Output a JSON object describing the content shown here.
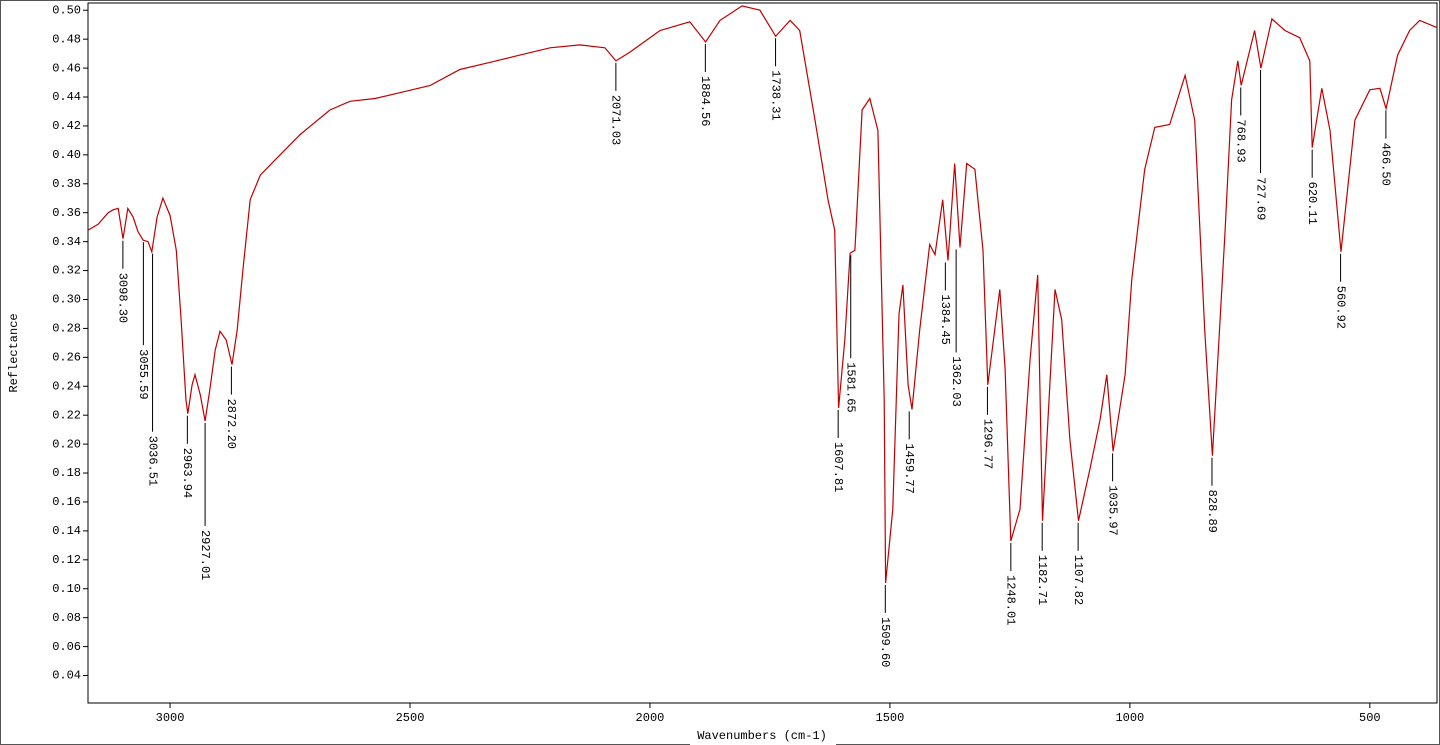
{
  "chart_data": {
    "type": "line",
    "xlabel": "Wavenumbers (cm-1)",
    "ylabel": "Reflectance",
    "xlim": [
      3171,
      360
    ],
    "ylim": [
      0.021,
      0.505
    ],
    "xticks": [
      3000,
      2500,
      2000,
      1500,
      1000,
      500
    ],
    "yticks": [
      0.04,
      0.06,
      0.08,
      {
        "value": 0.1,
        "label": "0.10"
      },
      0.12,
      0.14,
      0.16,
      0.18,
      {
        "value": 0.2,
        "label": "0.20"
      },
      0.22,
      0.24,
      0.26,
      0.28,
      {
        "value": 0.3,
        "label": "0.30"
      },
      0.32,
      0.34,
      0.36,
      0.38,
      {
        "value": 0.4,
        "label": "0.40"
      },
      0.42,
      0.44,
      0.46,
      0.48,
      {
        "value": 0.5,
        "label": "0.50"
      }
    ],
    "x": [
      3171,
      3150,
      3129,
      3119,
      3108,
      3098,
      3088,
      3077,
      3067,
      3056,
      3046,
      3038,
      3027,
      3015,
      3000,
      2987,
      2977,
      2967,
      2963,
      2954,
      2948,
      2937,
      2927,
      2917,
      2906,
      2896,
      2883,
      2871,
      2860,
      2848,
      2833,
      2812,
      2771,
      2729,
      2667,
      2625,
      2573,
      2521,
      2458,
      2396,
      2333,
      2271,
      2208,
      2146,
      2094,
      2071,
      2042,
      1979,
      1917,
      1884,
      1854,
      1808,
      1771,
      1738,
      1708,
      1688,
      1656,
      1629,
      1615,
      1607,
      1594,
      1583,
      1573,
      1558,
      1542,
      1525,
      1512,
      1509,
      1494,
      1481,
      1473,
      1462,
      1454,
      1438,
      1417,
      1406,
      1390,
      1379,
      1365,
      1354,
      1340,
      1323,
      1306,
      1296,
      1271,
      1260,
      1248,
      1229,
      1208,
      1192,
      1182,
      1156,
      1142,
      1125,
      1107,
      1083,
      1062,
      1048,
      1035,
      1010,
      996,
      969,
      948,
      917,
      885,
      865,
      844,
      828,
      802,
      788,
      775,
      768,
      740,
      727,
      704,
      677,
      646,
      625,
      620,
      600,
      583,
      560,
      531,
      500,
      479,
      466,
      442,
      417,
      396,
      360
    ],
    "series": [
      {
        "color": "#c00000",
        "values": [
          0.348,
          0.352,
          0.36,
          0.362,
          0.363,
          0.342,
          0.363,
          0.357,
          0.347,
          0.341,
          0.34,
          0.333,
          0.357,
          0.37,
          0.358,
          0.334,
          0.286,
          0.231,
          0.221,
          0.241,
          0.248,
          0.234,
          0.216,
          0.238,
          0.265,
          0.278,
          0.272,
          0.255,
          0.279,
          0.321,
          0.369,
          0.386,
          0.4,
          0.414,
          0.431,
          0.437,
          0.439,
          0.443,
          0.448,
          0.459,
          0.464,
          0.469,
          0.474,
          0.476,
          0.474,
          0.465,
          0.471,
          0.486,
          0.492,
          0.478,
          0.493,
          0.503,
          0.5,
          0.482,
          0.493,
          0.486,
          0.424,
          0.369,
          0.348,
          0.225,
          0.272,
          0.332,
          0.334,
          0.431,
          0.439,
          0.417,
          0.231,
          0.104,
          0.155,
          0.29,
          0.31,
          0.241,
          0.224,
          0.279,
          0.338,
          0.331,
          0.369,
          0.327,
          0.394,
          0.336,
          0.394,
          0.39,
          0.334,
          0.241,
          0.307,
          0.252,
          0.133,
          0.155,
          0.258,
          0.317,
          0.147,
          0.307,
          0.286,
          0.203,
          0.147,
          0.183,
          0.217,
          0.248,
          0.195,
          0.248,
          0.314,
          0.39,
          0.419,
          0.421,
          0.455,
          0.424,
          0.279,
          0.192,
          0.345,
          0.438,
          0.465,
          0.448,
          0.486,
          0.46,
          0.494,
          0.486,
          0.481,
          0.465,
          0.405,
          0.446,
          0.417,
          0.333,
          0.424,
          0.445,
          0.446,
          0.432,
          0.469,
          0.486,
          0.493,
          0.488
        ]
      }
    ],
    "annotations": [
      {
        "x": 3098.3,
        "y": 0.342,
        "label": "3098.30"
      },
      {
        "x": 3055.59,
        "y": 0.341,
        "label": "3055.59"
      },
      {
        "x": 3036.51,
        "y": 0.333,
        "label": "3036.51"
      },
      {
        "x": 2963.94,
        "y": 0.221,
        "label": "2963.94"
      },
      {
        "x": 2927.01,
        "y": 0.216,
        "label": "2927.01"
      },
      {
        "x": 2872.2,
        "y": 0.255,
        "label": "2872.20"
      },
      {
        "x": 2071.03,
        "y": 0.465,
        "label": "2071.03"
      },
      {
        "x": 1884.56,
        "y": 0.478,
        "label": "1884.56"
      },
      {
        "x": 1738.31,
        "y": 0.482,
        "label": "1738.31"
      },
      {
        "x": 1607.81,
        "y": 0.225,
        "label": "1607.81"
      },
      {
        "x": 1581.65,
        "y": 0.332,
        "label": "1581.65"
      },
      {
        "x": 1509.6,
        "y": 0.104,
        "label": "1509.60"
      },
      {
        "x": 1459.77,
        "y": 0.224,
        "label": "1459.77"
      },
      {
        "x": 1384.45,
        "y": 0.327,
        "label": "1384.45"
      },
      {
        "x": 1362.03,
        "y": 0.336,
        "label": "1362.03"
      },
      {
        "x": 1296.77,
        "y": 0.241,
        "label": "1296.77"
      },
      {
        "x": 1248.01,
        "y": 0.133,
        "label": "1248.01"
      },
      {
        "x": 1182.71,
        "y": 0.147,
        "label": "1182.71"
      },
      {
        "x": 1107.82,
        "y": 0.147,
        "label": "1107.82"
      },
      {
        "x": 1035.97,
        "y": 0.195,
        "label": "1035.97"
      },
      {
        "x": 828.89,
        "y": 0.192,
        "label": "828.89"
      },
      {
        "x": 768.93,
        "y": 0.448,
        "label": "768.93"
      },
      {
        "x": 727.69,
        "y": 0.46,
        "label": "727.69"
      },
      {
        "x": 620.11,
        "y": 0.405,
        "label": "620.11"
      },
      {
        "x": 560.92,
        "y": 0.333,
        "label": "560.92"
      },
      {
        "x": 466.5,
        "y": 0.432,
        "label": "466.50"
      }
    ]
  }
}
